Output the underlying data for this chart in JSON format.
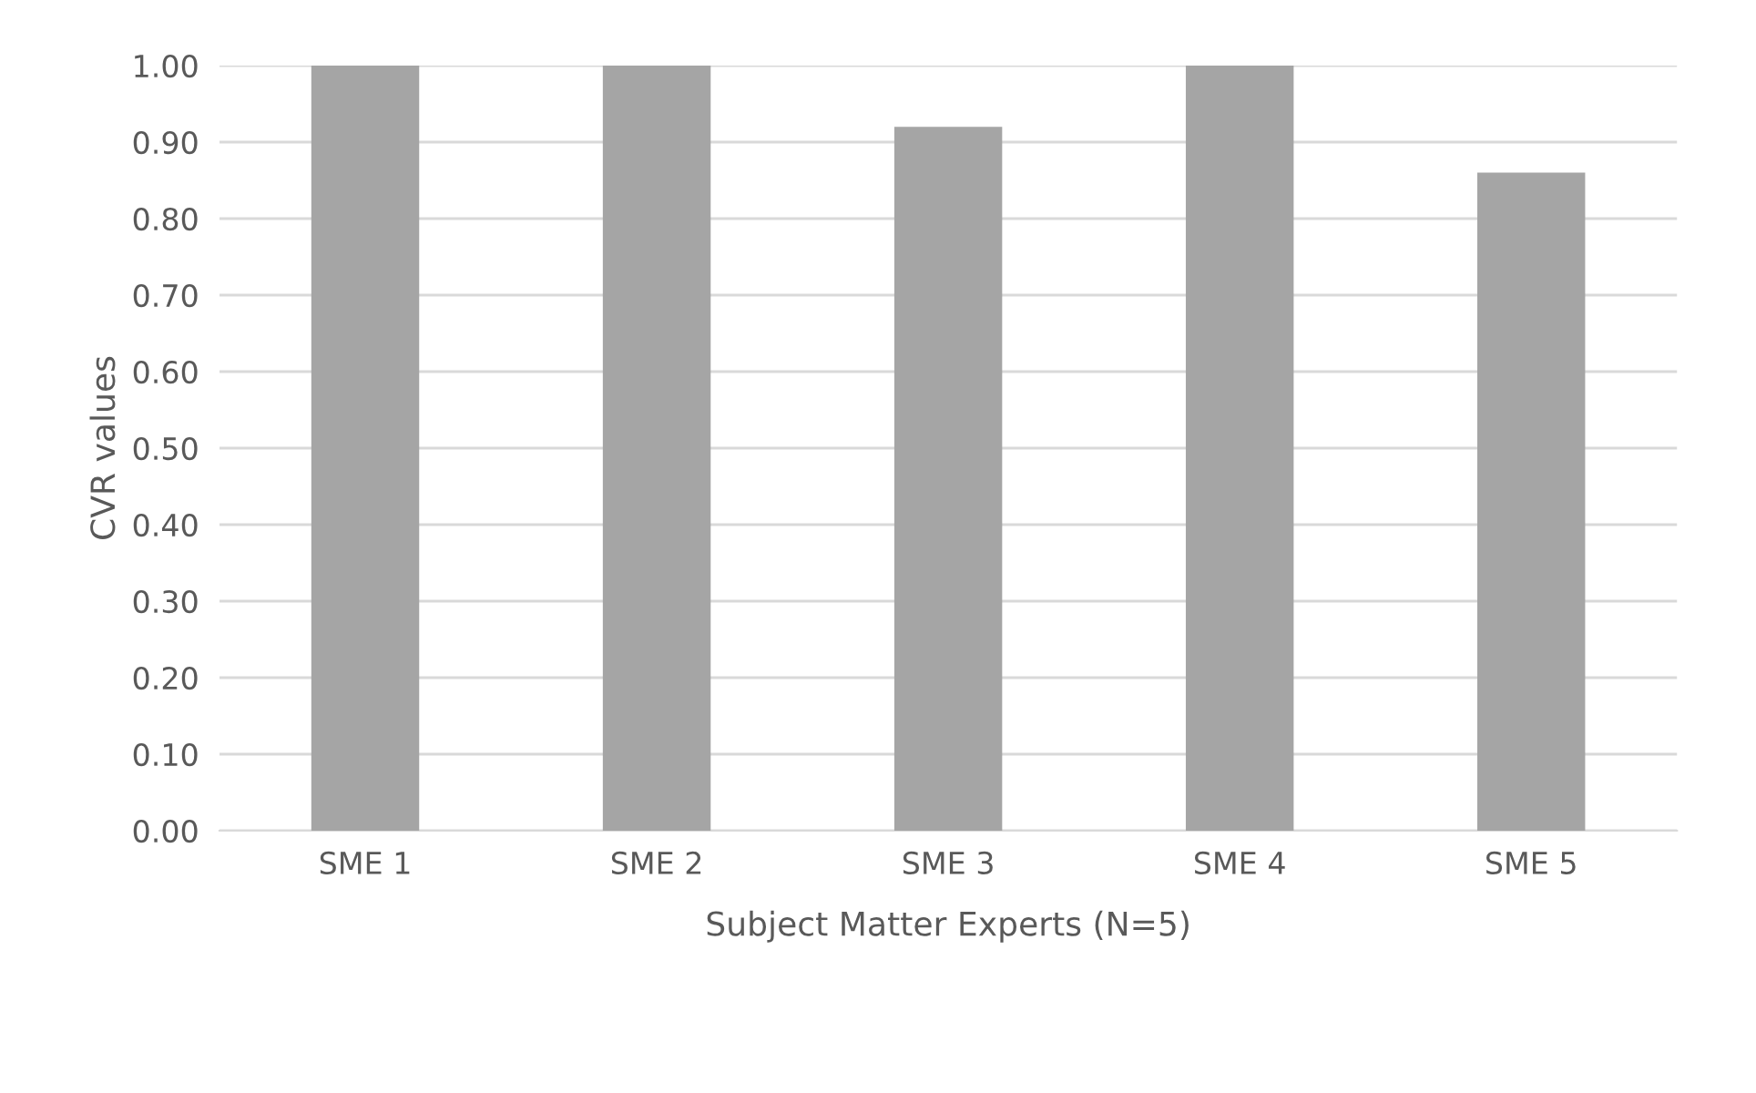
{
  "chart_data": {
    "type": "bar",
    "xlabel": "Subject Matter Experts (N=5)",
    "ylabel": "CVR values",
    "categories": [
      "SME 1",
      "SME 2",
      "SME 3",
      "SME 4",
      "SME 5"
    ],
    "values": [
      1.0,
      1.0,
      0.92,
      1.0,
      0.86
    ],
    "color": "#a5a5a5",
    "ylim": [
      0,
      1.0
    ],
    "yticks": [
      {
        "value": 0,
        "label": "0.00"
      },
      {
        "value": 0.1,
        "label": "0.10"
      },
      {
        "value": 0.2,
        "label": "0.20"
      },
      {
        "value": 0.3,
        "label": "0.30"
      },
      {
        "value": 0.4,
        "label": "0.40"
      },
      {
        "value": 0.5,
        "label": "0.50"
      },
      {
        "value": 0.6,
        "label": "0.60"
      },
      {
        "value": 0.7,
        "label": "0.70"
      },
      {
        "value": 0.8,
        "label": "0.80"
      },
      {
        "value": 0.9,
        "label": "0.90"
      },
      {
        "value": 1.0,
        "label": "1.00"
      }
    ],
    "grid": "y",
    "legend": false
  }
}
